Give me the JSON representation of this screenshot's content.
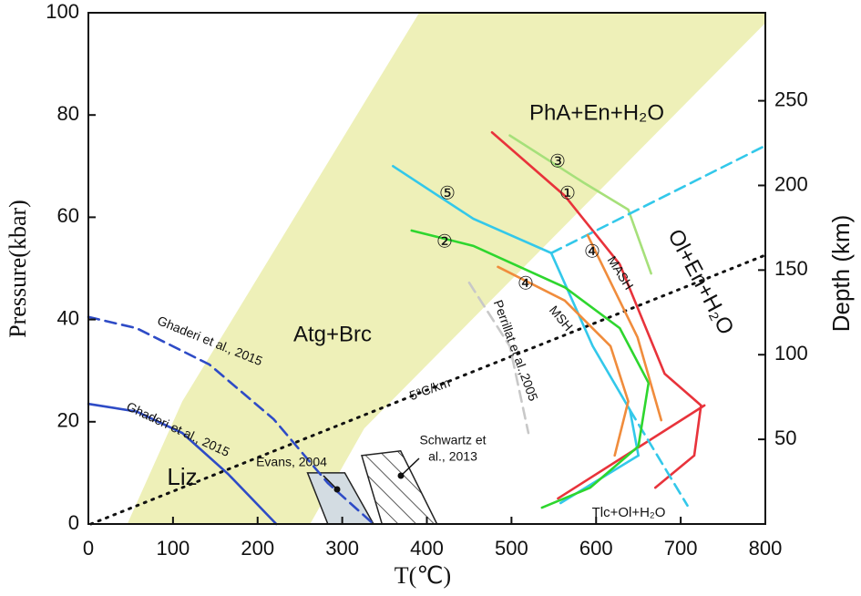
{
  "chart_data": {
    "type": "line",
    "xlabel": "T(℃)",
    "ylabel": "Pressure(kbar)",
    "y2label": "Depth (km)",
    "xlim": [
      0,
      800
    ],
    "xticks": [
      0,
      100,
      200,
      300,
      400,
      500,
      600,
      700,
      800
    ],
    "ylim": [
      0,
      100
    ],
    "yticks": [
      0,
      20,
      40,
      60,
      80,
      100
    ],
    "y2lim": [
      0,
      302
    ],
    "y2ticks": [
      50,
      100,
      150,
      200,
      250
    ],
    "regions": [
      {
        "x": [
          46,
          111,
          391,
          800,
          800,
          326,
          262
        ],
        "y": [
          0,
          24,
          100,
          100,
          98,
          18.7,
          0
        ],
        "fill": "#eef0b8",
        "hatch": false
      },
      {
        "x": [
          259,
          303,
          337,
          283
        ],
        "y": [
          10,
          10,
          0,
          0
        ],
        "fill": "#d3dce2",
        "hatch": false
      },
      {
        "x": [
          323,
          369,
          412,
          347
        ],
        "y": [
          13.4,
          14.3,
          0,
          0
        ],
        "fill": "#ffffff",
        "hatch": true
      }
    ],
    "series": [
      {
        "x": [
          0,
          57,
          111,
          165,
          222
        ],
        "y": [
          23.5,
          22,
          17.8,
          9.8,
          0
        ],
        "color": "#2e4bc6",
        "dash": false
      },
      {
        "x": [
          0,
          57,
          143,
          219,
          283,
          337
        ],
        "y": [
          40.5,
          38.3,
          31.2,
          20.5,
          8,
          0
        ],
        "color": "#2e4bc6",
        "dash": true
      },
      {
        "x": [
          3,
          800
        ],
        "y": [
          0,
          52.6
        ],
        "color": "#111111",
        "dash": "dot"
      },
      {
        "x": [
          477,
          563,
          628,
          681,
          724,
          716,
          670
        ],
        "y": [
          76.6,
          64.2,
          50.8,
          29.4,
          23.2,
          13.4,
          7.1
        ],
        "color": "#e8333b",
        "dash": false
      },
      {
        "x": [
          728,
          555
        ],
        "y": [
          23.2,
          5
        ],
        "color": "#e8333b",
        "dash": false
      },
      {
        "x": [
          498,
          585,
          638,
          665
        ],
        "y": [
          76,
          66.8,
          61.5,
          49
        ],
        "color": "#a6e07a",
        "dash": false
      },
      {
        "x": [
          360,
          455,
          547,
          596,
          640,
          650,
          558
        ],
        "y": [
          70,
          59.7,
          53,
          34.8,
          22.3,
          13.4,
          4.1
        ],
        "color": "#33c8ea",
        "dash": false
      },
      {
        "x": [
          547,
          800
        ],
        "y": [
          53,
          74
        ],
        "color": "#33c8ea",
        "dash": true
      },
      {
        "x": [
          640,
          708
        ],
        "y": [
          22.3,
          3.6
        ],
        "color": "#33c8ea",
        "dash": true
      },
      {
        "x": [
          382,
          455,
          563,
          628,
          662,
          650,
          593,
          536
        ],
        "y": [
          57.4,
          54.4,
          46.3,
          38.3,
          27.6,
          15.2,
          7.1,
          3.2
        ],
        "color": "#2ed62e",
        "dash": false
      },
      {
        "x": [
          590,
          649,
          677
        ],
        "y": [
          56.5,
          36.5,
          20.3
        ],
        "color": "#f08c3c",
        "dash": false
      },
      {
        "x": [
          484,
          563,
          617,
          638,
          622
        ],
        "y": [
          50.3,
          43.7,
          34.8,
          24,
          13.4
        ],
        "color": "#f08c3c",
        "dash": false
      },
      {
        "x": [
          450,
          498,
          520
        ],
        "y": [
          47.2,
          34.8,
          17.8
        ],
        "color": "#c8c8c8",
        "dash": true
      }
    ],
    "annotations": [
      "Atg+Brc",
      "Liz",
      "Ghaderi et al., 2015",
      "Ghaderi et al., 2015",
      "5°C/km",
      "Perrillat et al.,2005",
      "Evans, 2004",
      "Schwartz et",
      "al., 2013",
      "MASH",
      "MSH",
      "Tlc+Ol+H₂O",
      "Ol+En+H₂O",
      "PhA+En+H₂O",
      "③",
      "①",
      "⑤",
      "②",
      "④",
      "④"
    ]
  }
}
